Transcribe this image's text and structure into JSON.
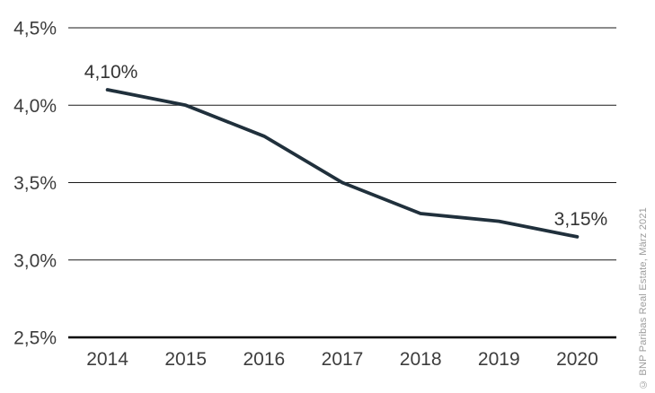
{
  "chart_data": {
    "type": "line",
    "title": "",
    "categories": [
      "2014",
      "2015",
      "2016",
      "2017",
      "2018",
      "2019",
      "2020"
    ],
    "values": [
      4.1,
      4.0,
      3.8,
      3.5,
      3.3,
      3.25,
      3.15
    ],
    "ylim": [
      2.5,
      4.5
    ],
    "yticks": [
      4.5,
      4.0,
      3.5,
      3.0,
      2.5
    ],
    "ytick_labels": [
      "4,5%",
      "4,0%",
      "3,5%",
      "3,0%",
      "2,5%"
    ],
    "xlabel": "",
    "ylabel": "",
    "grid": true,
    "legend": "none",
    "line_color": "#20303c",
    "gridline_color": "#1a1a1a",
    "axis_color": "#000000",
    "annotations": [
      {
        "index": 0,
        "label": "4,10%"
      },
      {
        "index": 6,
        "label": "3,15%"
      }
    ]
  },
  "source_note": "© BNP Paribas Real Estate, März 2021"
}
